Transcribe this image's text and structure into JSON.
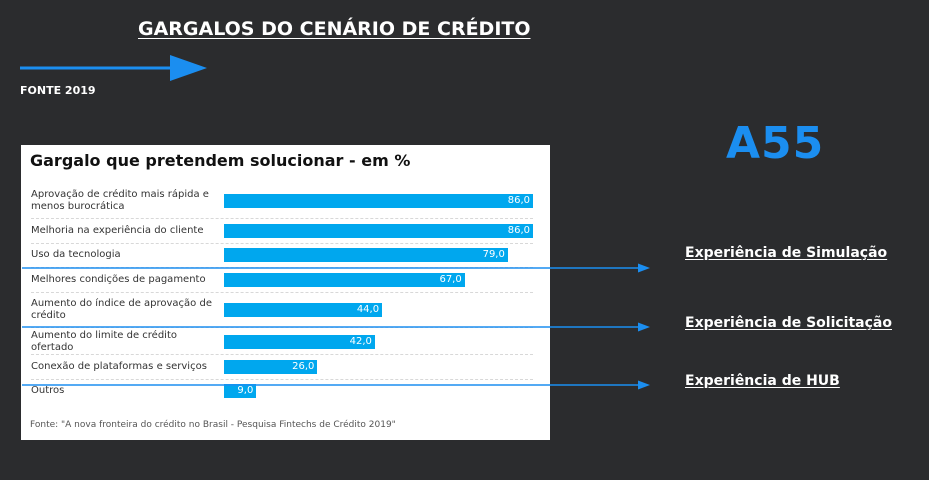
{
  "slide": {
    "title": "GARGALOS DO CENÁRIO DE CRÉDITO",
    "source_tag": "FONTE 2019",
    "code": "A55",
    "accent_color": "#1b8ef0",
    "background_color": "#2b2c2e"
  },
  "chart_data": {
    "type": "bar",
    "orientation": "horizontal",
    "title": "Gargalo que pretendem solucionar - em %",
    "categories": [
      "Aprovação de crédito mais rápida e menos burocrática",
      "Melhoria na experiência do cliente",
      "Uso da tecnologia",
      "Melhores condições de pagamento",
      "Aumento do índice de aprovação de crédito",
      "Aumento do limite de crédito ofertado",
      "Conexão de plataformas e serviços",
      "Outros"
    ],
    "values": [
      86.0,
      86.0,
      79.0,
      67.0,
      44.0,
      42.0,
      26.0,
      9.0
    ],
    "value_labels": [
      "86,0",
      "86,0",
      "79,0",
      "67,0",
      "44,0",
      "42,0",
      "26,0",
      "9,0"
    ],
    "xlim": [
      0,
      86
    ],
    "bar_color": "#00a7ee",
    "source": "Fonte: \"A nova fronteira do crédito no Brasil - Pesquisa Fintechs de Crédito 2019\""
  },
  "callouts": [
    {
      "label": "Experiência de Simulação"
    },
    {
      "label": "Experiência de Solicitação"
    },
    {
      "label": "Experiência de HUB"
    }
  ]
}
